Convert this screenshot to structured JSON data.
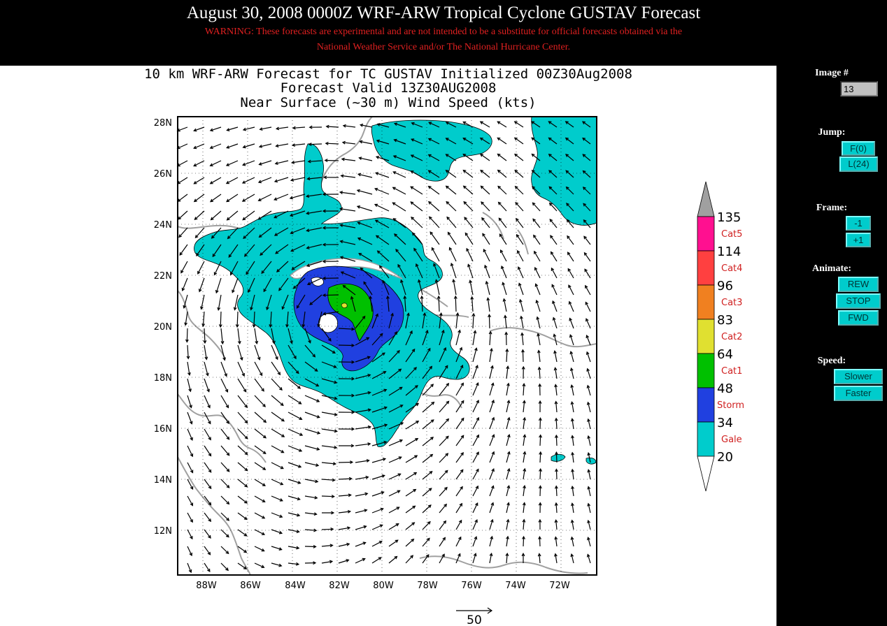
{
  "header": {
    "title": "August 30, 2008 0000Z WRF-ARW Tropical Cyclone GUSTAV Forecast",
    "warning_line1": "WARNING: These forecasts are experimental and are not intended to be a substitute for official forecasts obtained via the",
    "warning_line2": "National Weather Service and/or The National Hurricane Center."
  },
  "map": {
    "title_line1": "10 km WRF-ARW Forecast for TC GUSTAV Initialized 00Z30Aug2008",
    "title_line2": "Forecast Valid 13Z30AUG2008",
    "title_line3": "Near Surface (~30 m) Wind Speed (kts)",
    "lat_labels": [
      "28N",
      "26N",
      "24N",
      "22N",
      "20N",
      "18N",
      "16N",
      "14N",
      "12N"
    ],
    "lon_labels": [
      "88W",
      "86W",
      "84W",
      "82W",
      "80W",
      "78W",
      "76W",
      "74W",
      "72W"
    ],
    "vector_scale_label": "50",
    "colors": {
      "gale": "#00cccc",
      "storm": "#2040e0",
      "cat1": "#00c000",
      "cat2": "#e0e030",
      "cat3": "#f08020",
      "cat4": "#ff4040",
      "cat5": "#ff1090",
      "land": "#a0a0a0"
    }
  },
  "legend": {
    "ticks": [
      "135",
      "114",
      "96",
      "83",
      "64",
      "48",
      "34",
      "20"
    ],
    "categories": [
      "Cat5",
      "Cat4",
      "Cat3",
      "Cat2",
      "Cat1",
      "Storm",
      "Gale"
    ]
  },
  "controls": {
    "image_label": "Image #",
    "image_value": "13",
    "jump_label": "Jump:",
    "first_btn": "F(0)",
    "last_btn": "L(24)",
    "frame_label": "Frame:",
    "prev_btn": "-1",
    "next_btn": "+1",
    "animate_label": "Animate:",
    "rew_btn": "REW",
    "stop_btn": "STOP",
    "fwd_btn": "FWD",
    "speed_label": "Speed:",
    "slower_btn": "Slower",
    "faster_btn": "Faster"
  }
}
